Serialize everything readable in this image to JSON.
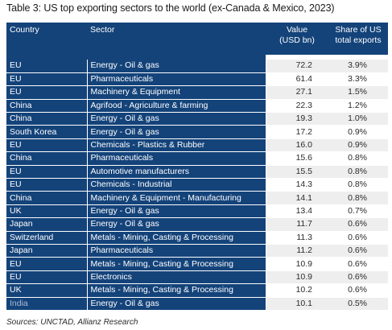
{
  "title": "Table 3: US top exporting sectors to the world (ex-Canada & Mexico, 2023)",
  "headers": {
    "country": "Country",
    "sector": "Sector",
    "value_line1": "Value",
    "value_line2": "(USD bn)",
    "share_line1": "Share of US",
    "share_line2": "total exports"
  },
  "rows": [
    {
      "country": "EU",
      "sector": "Energy - Oil & gas",
      "value": "72.2",
      "share": "3.9%"
    },
    {
      "country": "EU",
      "sector": "Pharmaceuticals",
      "value": "61.4",
      "share": "3.3%"
    },
    {
      "country": "EU",
      "sector": "Machinery & Equipment",
      "value": "27.1",
      "share": "1.5%"
    },
    {
      "country": "China",
      "sector": "Agrifood - Agriculture & farming",
      "value": "22.3",
      "share": "1.2%"
    },
    {
      "country": "China",
      "sector": "Energy - Oil & gas",
      "value": "19.3",
      "share": "1.0%"
    },
    {
      "country": "South Korea",
      "sector": "Energy - Oil & gas",
      "value": "17.2",
      "share": "0.9%"
    },
    {
      "country": "EU",
      "sector": "Chemicals - Plastics & Rubber",
      "value": "16.0",
      "share": "0.9%"
    },
    {
      "country": "China",
      "sector": "Pharmaceuticals",
      "value": "15.6",
      "share": "0.8%"
    },
    {
      "country": "EU",
      "sector": "Automotive manufacturers",
      "value": "15.5",
      "share": "0.8%"
    },
    {
      "country": "EU",
      "sector": "Chemicals - Industrial",
      "value": "14.3",
      "share": "0.8%"
    },
    {
      "country": "China",
      "sector": "Machinery & Equipment - Manufacturing",
      "value": "14.1",
      "share": "0.8%"
    },
    {
      "country": "UK",
      "sector": "Energy - Oil & gas",
      "value": "13.4",
      "share": "0.7%"
    },
    {
      "country": "Japan",
      "sector": "Energy - Oil & gas",
      "value": "11.7",
      "share": "0.6%"
    },
    {
      "country": "Switzerland",
      "sector": "Metals - Mining, Casting & Processing",
      "value": "11.3",
      "share": "0.6%"
    },
    {
      "country": "Japan",
      "sector": "Pharmaceuticals",
      "value": "11.2",
      "share": "0.6%"
    },
    {
      "country": "EU",
      "sector": "Metals - Mining, Casting & Processing",
      "value": "10.9",
      "share": "0.6%"
    },
    {
      "country": "EU",
      "sector": "Electronics",
      "value": "10.9",
      "share": "0.6%"
    },
    {
      "country": "UK",
      "sector": "Metals - Mining, Casting & Processing",
      "value": "10.2",
      "share": "0.6%"
    },
    {
      "country": "India",
      "sector": "Energy - Oil & gas",
      "value": "10.1",
      "share": "0.5%"
    }
  ],
  "source": "Sources: UNCTAD, Allianz Research",
  "colors": {
    "header_bg": "#14437a",
    "stripe": "#eeeeee"
  }
}
